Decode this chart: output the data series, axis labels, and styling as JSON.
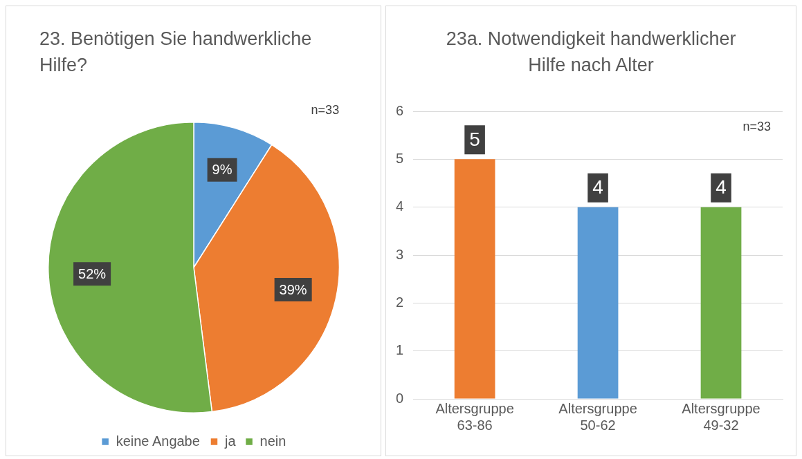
{
  "chart_data": [
    {
      "type": "pie",
      "title": "23. Benötigen Sie handwerkliche Hilfe?",
      "annotations": [
        "n=33"
      ],
      "categories": [
        "keine Angabe",
        "ja",
        "nein"
      ],
      "values": [
        9,
        39,
        52
      ],
      "colors": [
        "#5b9bd5",
        "#ed7d31",
        "#70ad47"
      ],
      "value_labels": [
        "9%",
        "39%",
        "52%"
      ],
      "legend": "bottom"
    },
    {
      "type": "bar",
      "title": "23a. Notwendigkeit handwerklicher Hilfe nach Alter",
      "annotations": [
        "n=33"
      ],
      "categories": [
        "Altersgruppe 63-86",
        "Altersgruppe 50-62",
        "Altersgruppe 49-32"
      ],
      "values": [
        5,
        4,
        4
      ],
      "colors": [
        "#ed7d31",
        "#5b9bd5",
        "#70ad47"
      ],
      "ylim": [
        0,
        6
      ],
      "yticks": [
        0,
        1,
        2,
        3,
        4,
        5,
        6
      ],
      "grid": "y",
      "data_labels": true
    }
  ]
}
